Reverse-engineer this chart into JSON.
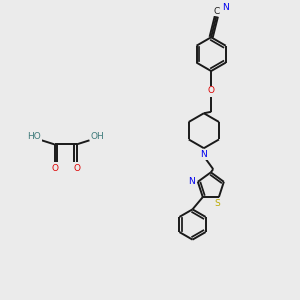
{
  "bg_color": "#ebebeb",
  "bond_color": "#1a1a1a",
  "bond_width": 1.4,
  "atom_colors": {
    "N": "#0000ee",
    "O": "#dd0000",
    "S": "#bbaa00",
    "HO": "#3d7a7a",
    "C": "#1a1a1a"
  },
  "font_size": 6.5,
  "fig_size": [
    3.0,
    3.0
  ],
  "dpi": 100
}
